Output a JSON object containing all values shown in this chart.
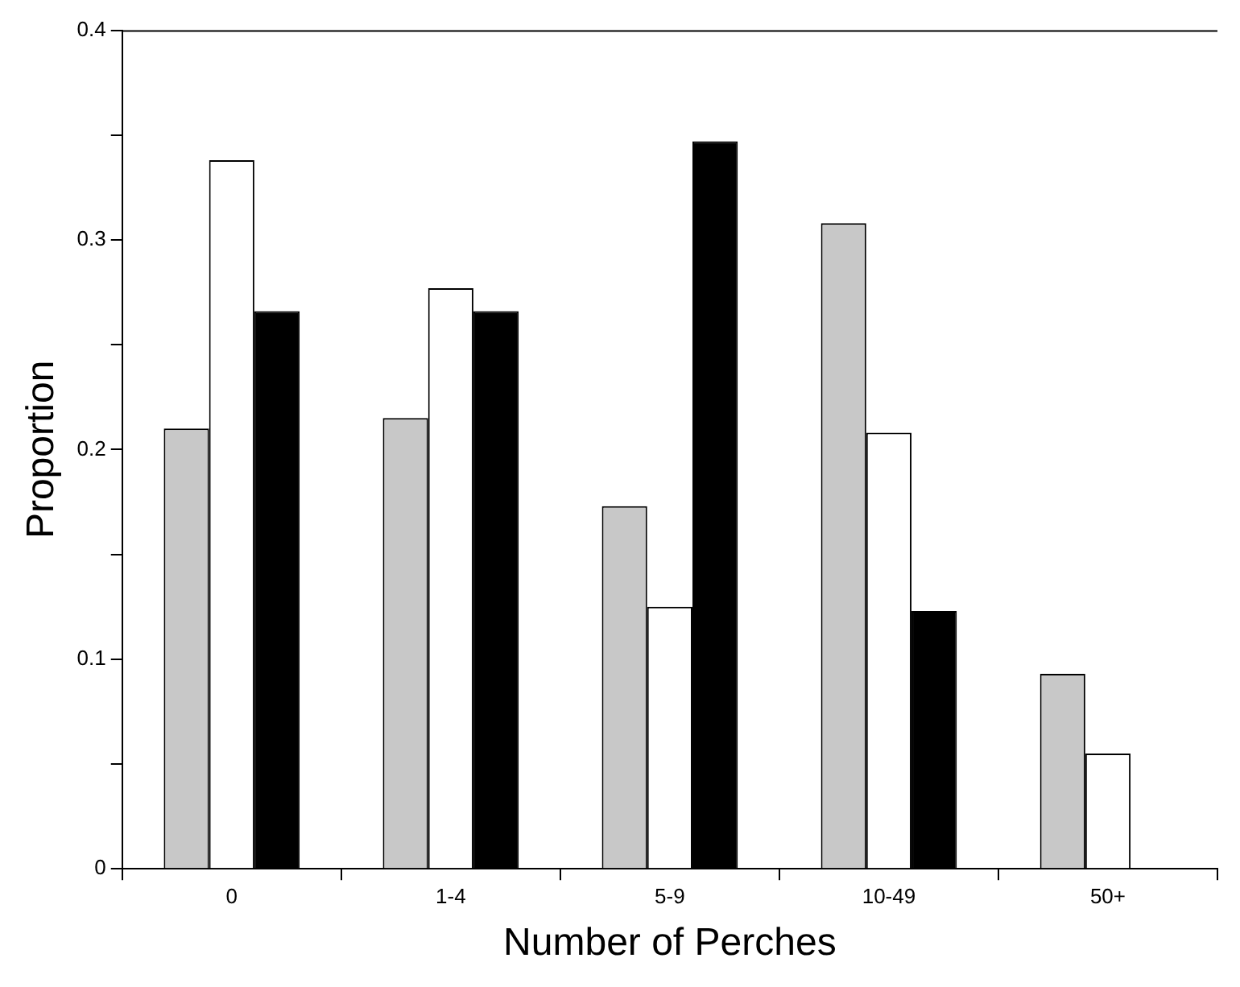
{
  "chart_data": {
    "type": "bar",
    "xlabel": "Number of Perches",
    "ylabel": "Proportion",
    "categories": [
      "0",
      "1-4",
      "5-9",
      "10-49",
      "50+"
    ],
    "series": [
      {
        "color": "#c8c8c8",
        "values": [
          0.21,
          0.215,
          0.173,
          0.308,
          0.093
        ]
      },
      {
        "color": "#ffffff",
        "values": [
          0.338,
          0.277,
          0.125,
          0.208,
          0.055
        ]
      },
      {
        "color": "#000000",
        "values": [
          0.266,
          0.266,
          0.347,
          0.123,
          null
        ]
      }
    ],
    "ylim": [
      0,
      0.4
    ],
    "yticks": [
      0,
      {
        "value": 0.05,
        "label": null
      },
      0.1,
      {
        "value": 0.15,
        "label": null
      },
      0.2,
      {
        "value": 0.25,
        "label": null
      },
      0.3,
      {
        "value": 0.35,
        "label": null
      },
      0.4
    ],
    "grid": false,
    "legend": false
  }
}
